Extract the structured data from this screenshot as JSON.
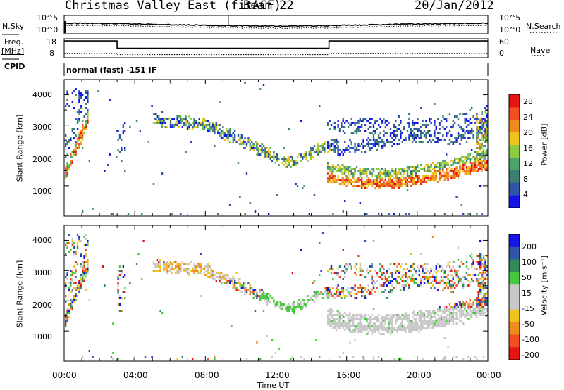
{
  "header": {
    "title": "Christmas Valley East (fitACF)",
    "beam": "Beam 22",
    "date": "20/Jan/2012"
  },
  "side_labels": {
    "nsky": "N.Sky",
    "freq": "Freq.",
    "freq_unit": "[MHz]",
    "cpid": "CPID",
    "nsearch": "N.Search",
    "nave": "Nave"
  },
  "cpid_text": "normal (fast) -151 IF",
  "colors": {
    "power_scale": [
      "#1414e6",
      "#2f55a8",
      "#3b7f70",
      "#4ea36a",
      "#8ccc3c",
      "#f0c21e",
      "#f08c1e",
      "#f0501e",
      "#e61414"
    ],
    "velocity_scale": [
      "#e61414",
      "#f0501e",
      "#f08c1e",
      "#f0c21e",
      "#c8c8c8",
      "#c8c8c8",
      "#46c83c",
      "#2f8a5a",
      "#2f55a8",
      "#1414e6"
    ]
  },
  "chart_data": [
    {
      "type": "line",
      "panel": "noise",
      "ylabel_left": "N.Sky",
      "ylabel_right": "N.Search",
      "left_ticks": [
        "10^5",
        "10^0"
      ],
      "right_ticks": [
        "10^5",
        "10^0"
      ],
      "x_range_hours": [
        0,
        24
      ]
    },
    {
      "type": "line",
      "panel": "frequency",
      "ylabel_left": "Freq. [MHz]",
      "ylabel_right": "Nave",
      "left_ticks": [
        "18",
        "8"
      ],
      "right_ticks": [
        "60",
        "0"
      ],
      "series": [
        {
          "name": "Freq.",
          "x": [
            0,
            3,
            3,
            15,
            15,
            24
          ],
          "y": [
            17,
            17,
            12,
            12,
            17,
            17
          ]
        },
        {
          "name": "Nave",
          "x": [
            0,
            3,
            3,
            15,
            15,
            24
          ],
          "y": [
            10,
            10,
            6,
            6,
            10,
            10
          ]
        }
      ]
    },
    {
      "type": "heatmap",
      "panel": "power",
      "ylabel": "Slant Range [km]",
      "y_ticks": [
        "1000",
        "2000",
        "3000",
        "4000"
      ],
      "ylim": [
        0,
        4500
      ],
      "colorbar_label": "Power [dB]",
      "colorbar_ticks": [
        "4",
        "8",
        "12",
        "16",
        "20",
        "24",
        "28"
      ]
    },
    {
      "type": "heatmap",
      "panel": "velocity",
      "ylabel": "Slant Range [km]",
      "y_ticks": [
        "1000",
        "2000",
        "3000",
        "4000"
      ],
      "ylim": [
        0,
        4500
      ],
      "colorbar_label": "Velocity [m s⁻¹]",
      "colorbar_ticks": [
        "200",
        "100",
        "50",
        "15",
        "-15",
        "-50",
        "-100",
        "-200"
      ]
    }
  ],
  "x_axis": {
    "label": "Time UT",
    "ticks": [
      "00:00",
      "04:00",
      "08:00",
      "12:00",
      "16:00",
      "20:00",
      "00:00"
    ]
  }
}
